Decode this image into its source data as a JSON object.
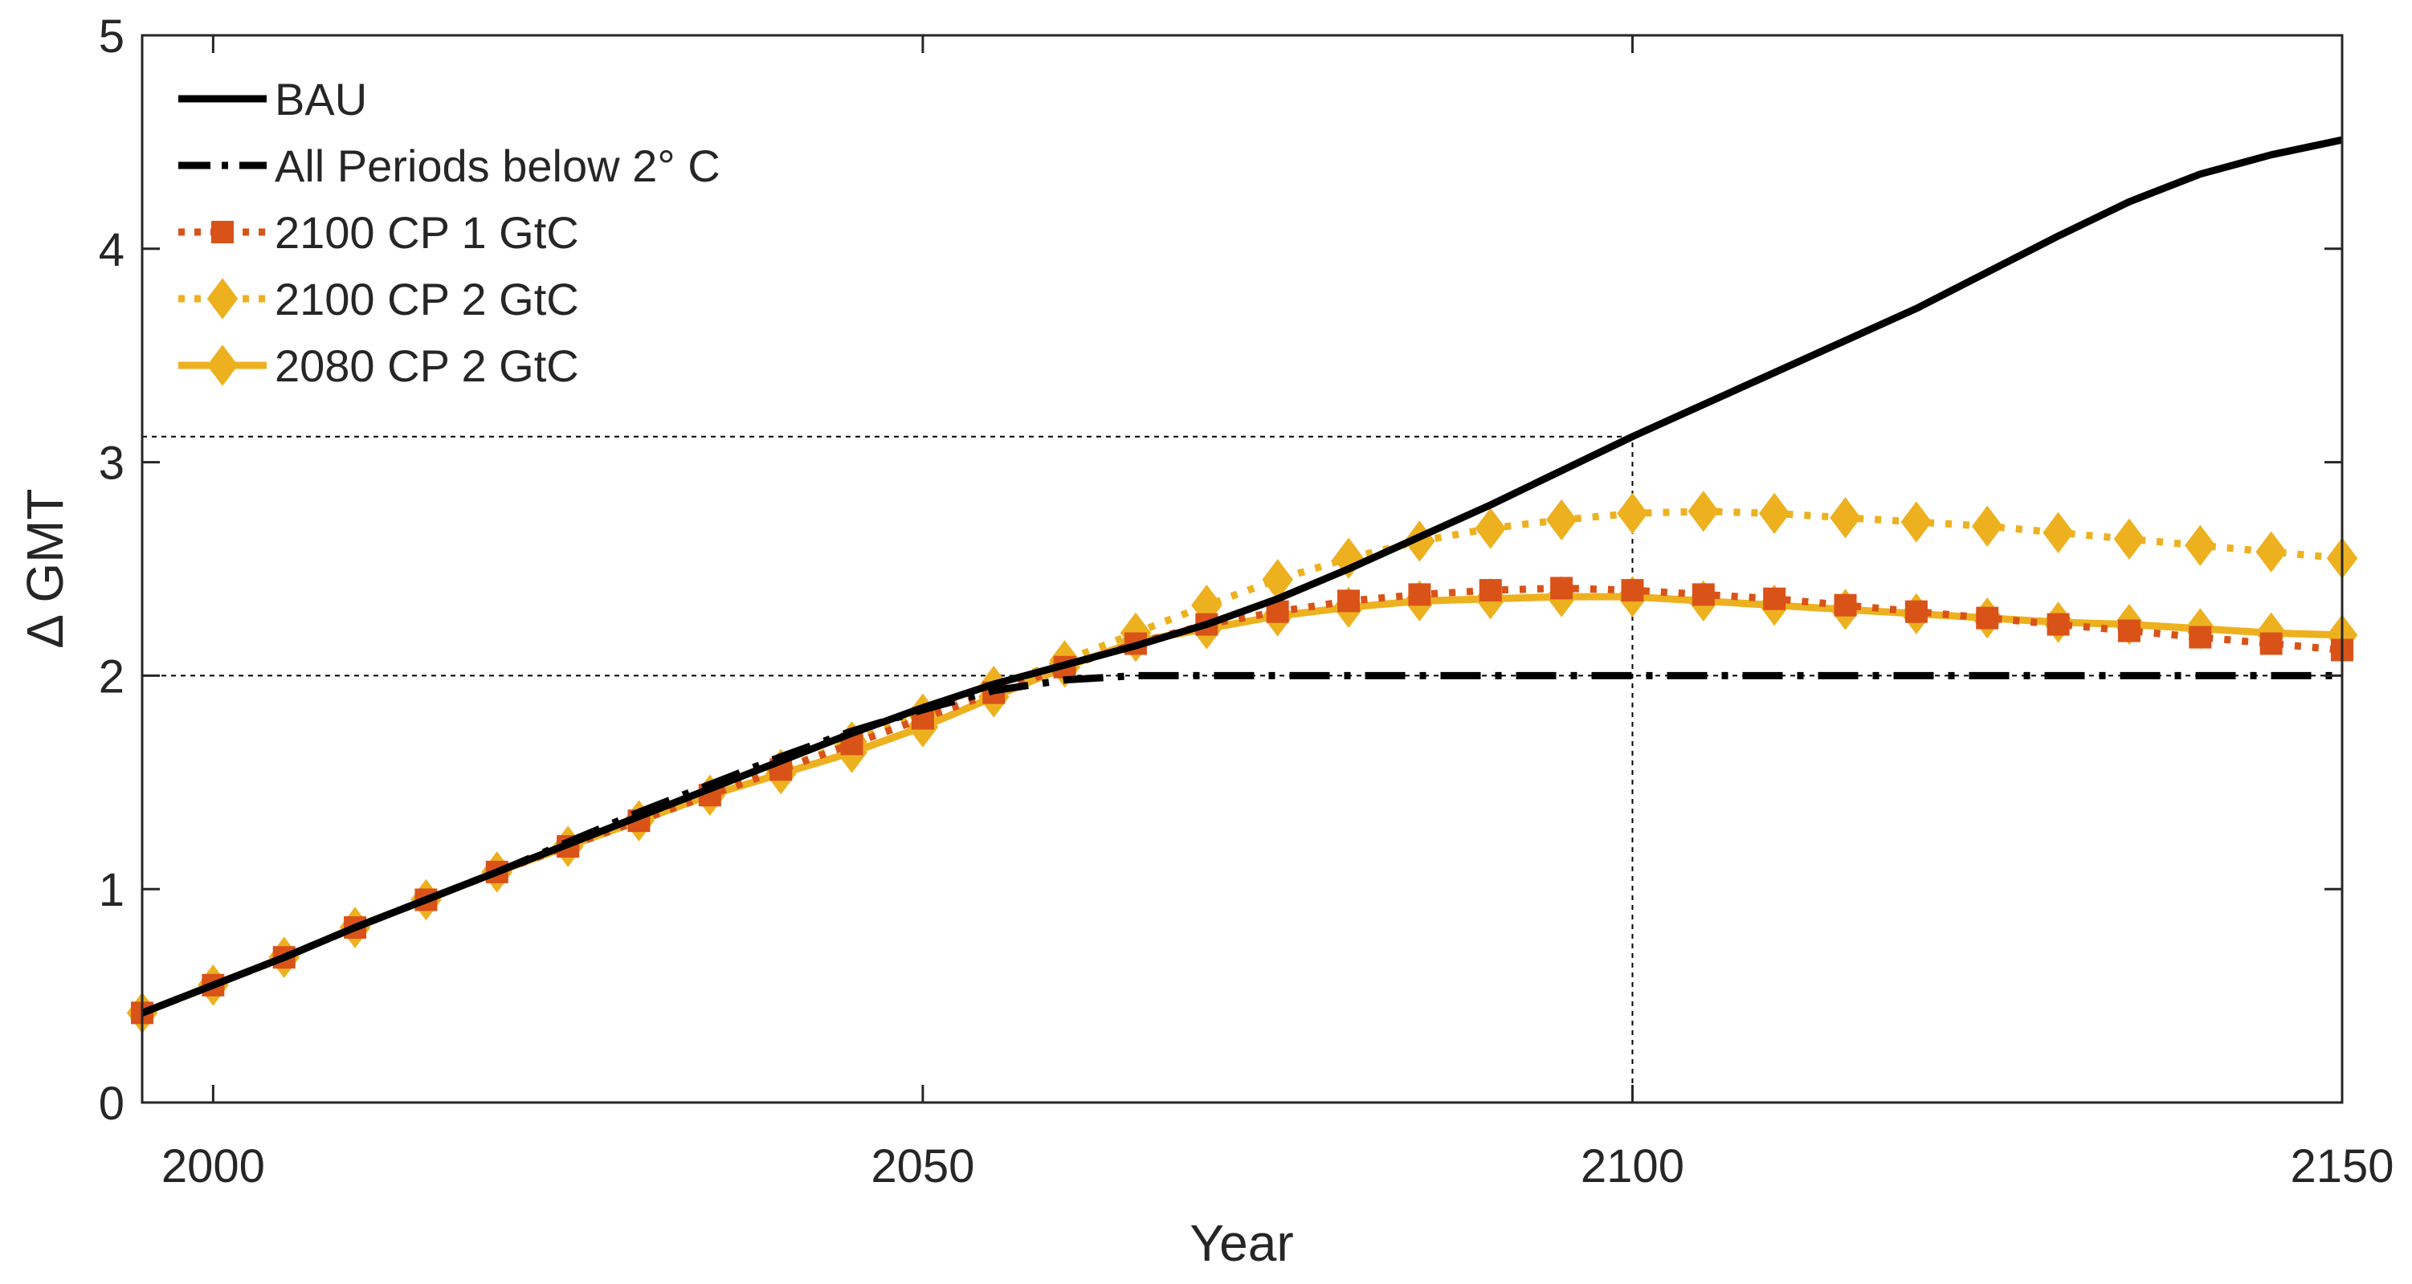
{
  "chart_data": {
    "type": "line",
    "title": "",
    "xlabel": "Year",
    "ylabel": "Δ GMT",
    "xlim": [
      1995,
      2150
    ],
    "ylim": [
      0,
      5
    ],
    "xticks": [
      2000,
      2050,
      2100,
      2150
    ],
    "yticks": [
      0,
      1,
      2,
      3,
      4,
      5
    ],
    "grid": false,
    "legend_position": "top-left",
    "reference_lines": [
      {
        "name": "2-degree threshold",
        "axis": "y",
        "value": 2,
        "x_to": 2150
      },
      {
        "name": "2100 BAU level",
        "axis": "y",
        "value": 3.12,
        "x_to": 2100
      },
      {
        "name": "year 2100",
        "axis": "x",
        "value": 2100,
        "y_to": 3.12
      }
    ],
    "series": [
      {
        "name": "BAU",
        "color": "#000000",
        "dash": "solid",
        "marker": "none",
        "x": [
          1995,
          2000,
          2005,
          2010,
          2015,
          2020,
          2025,
          2030,
          2035,
          2040,
          2045,
          2050,
          2055,
          2060,
          2065,
          2070,
          2075,
          2080,
          2085,
          2090,
          2095,
          2100,
          2105,
          2110,
          2115,
          2120,
          2125,
          2130,
          2135,
          2140,
          2145,
          2150
        ],
        "y": [
          0.42,
          0.55,
          0.68,
          0.82,
          0.95,
          1.08,
          1.21,
          1.34,
          1.47,
          1.6,
          1.73,
          1.85,
          1.96,
          2.05,
          2.14,
          2.24,
          2.36,
          2.5,
          2.65,
          2.8,
          2.96,
          3.12,
          3.27,
          3.42,
          3.57,
          3.72,
          3.89,
          4.06,
          4.22,
          4.35,
          4.44,
          4.51
        ]
      },
      {
        "name": "All Periods below 2° C",
        "color": "#000000",
        "dash": "dashdot",
        "marker": "none",
        "x": [
          1995,
          2000,
          2005,
          2010,
          2015,
          2020,
          2025,
          2030,
          2035,
          2040,
          2045,
          2050,
          2055,
          2060,
          2065,
          2070,
          2150
        ],
        "y": [
          0.42,
          0.55,
          0.68,
          0.82,
          0.95,
          1.08,
          1.22,
          1.36,
          1.49,
          1.62,
          1.74,
          1.84,
          1.93,
          1.98,
          2.0,
          2.0,
          2.0
        ]
      },
      {
        "name": "2100 CP 1 GtC",
        "color": "#D95319",
        "dash": "dotted",
        "marker": "square",
        "x": [
          1995,
          2000,
          2005,
          2010,
          2015,
          2020,
          2025,
          2030,
          2035,
          2040,
          2045,
          2050,
          2055,
          2060,
          2065,
          2070,
          2075,
          2080,
          2085,
          2090,
          2095,
          2100,
          2105,
          2110,
          2115,
          2120,
          2125,
          2130,
          2135,
          2140,
          2145,
          2150
        ],
        "y": [
          0.42,
          0.55,
          0.68,
          0.82,
          0.95,
          1.08,
          1.2,
          1.32,
          1.44,
          1.56,
          1.68,
          1.8,
          1.92,
          2.04,
          2.15,
          2.24,
          2.3,
          2.35,
          2.38,
          2.4,
          2.41,
          2.4,
          2.38,
          2.36,
          2.33,
          2.3,
          2.27,
          2.24,
          2.21,
          2.18,
          2.15,
          2.12
        ]
      },
      {
        "name": "2100 CP 2 GtC",
        "color": "#EDB120",
        "dash": "dotted",
        "marker": "diamond",
        "x": [
          1995,
          2000,
          2005,
          2010,
          2015,
          2020,
          2025,
          2030,
          2035,
          2040,
          2045,
          2050,
          2055,
          2060,
          2065,
          2070,
          2075,
          2080,
          2085,
          2090,
          2095,
          2100,
          2105,
          2110,
          2115,
          2120,
          2125,
          2130,
          2135,
          2140,
          2145,
          2150
        ],
        "y": [
          0.42,
          0.55,
          0.68,
          0.82,
          0.95,
          1.08,
          1.2,
          1.32,
          1.44,
          1.56,
          1.69,
          1.82,
          1.95,
          2.07,
          2.2,
          2.33,
          2.45,
          2.55,
          2.63,
          2.69,
          2.73,
          2.76,
          2.77,
          2.76,
          2.74,
          2.72,
          2.7,
          2.67,
          2.64,
          2.61,
          2.58,
          2.55
        ]
      },
      {
        "name": "2080 CP 2 GtC",
        "color": "#EDB120",
        "dash": "solid",
        "marker": "diamond",
        "x": [
          1995,
          2000,
          2005,
          2010,
          2015,
          2020,
          2025,
          2030,
          2035,
          2040,
          2045,
          2050,
          2055,
          2060,
          2065,
          2070,
          2075,
          2080,
          2085,
          2090,
          2095,
          2100,
          2105,
          2110,
          2115,
          2120,
          2125,
          2130,
          2135,
          2140,
          2145,
          2150
        ],
        "y": [
          0.42,
          0.55,
          0.68,
          0.82,
          0.95,
          1.08,
          1.2,
          1.32,
          1.44,
          1.54,
          1.64,
          1.76,
          1.9,
          2.04,
          2.16,
          2.22,
          2.28,
          2.32,
          2.35,
          2.36,
          2.37,
          2.37,
          2.35,
          2.33,
          2.31,
          2.29,
          2.27,
          2.25,
          2.24,
          2.22,
          2.2,
          2.19
        ]
      }
    ]
  }
}
